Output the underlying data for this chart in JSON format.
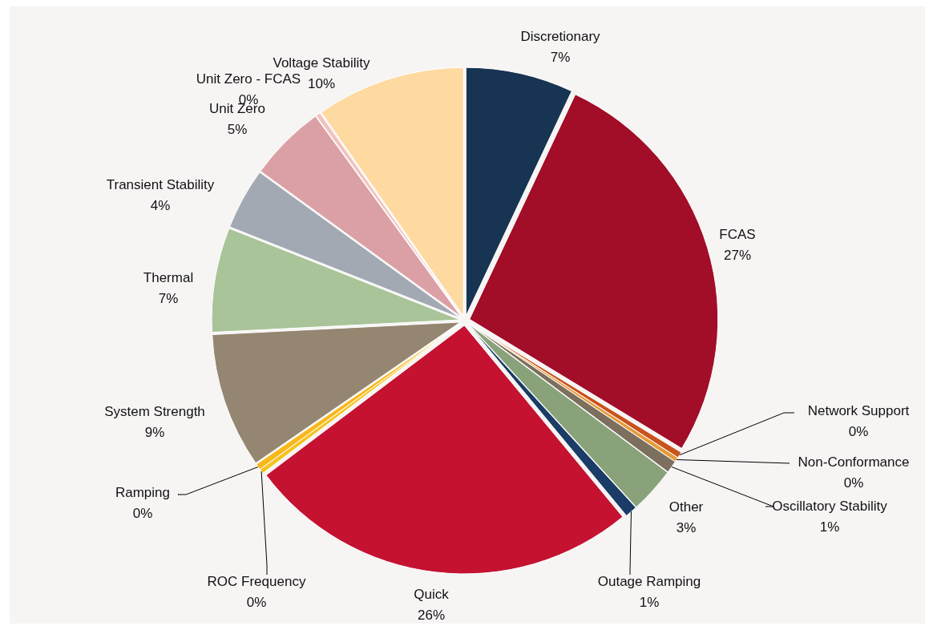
{
  "chart_data": {
    "type": "pie",
    "categories": [
      "Discretionary",
      "FCAS",
      "Network Support",
      "Non-Conformance",
      "Oscillatory Stability",
      "Other",
      "Outage Ramping",
      "Quick",
      "ROC Frequency",
      "Ramping",
      "System Strength",
      "Thermal",
      "Transient Stability",
      "Unit Zero",
      "Unit Zero - FCAS",
      "Voltage Stability"
    ],
    "values": [
      7,
      26.7,
      0.4,
      0.3,
      0.8,
      3,
      0.8,
      25.7,
      0.3,
      0.4,
      8.8,
      6.8,
      4,
      5,
      0.3,
      9.7
    ],
    "value_labels": [
      "7%",
      "27%",
      "0%",
      "0%",
      "1%",
      "3%",
      "1%",
      "26%",
      "0%",
      "0%",
      "9%",
      "7%",
      "4%",
      "5%",
      "0%",
      "10%"
    ],
    "colors": [
      "#173553",
      "#a20d28",
      "#c9531d",
      "#e49b3b",
      "#7d6f5d",
      "#89a27a",
      "#1b3c66",
      "#c41230",
      "#f5c31e",
      "#f8b81c",
      "#948670",
      "#a9c498",
      "#a2a9b3",
      "#dba0a5",
      "#f1c2bf",
      "#fed9a0"
    ]
  }
}
